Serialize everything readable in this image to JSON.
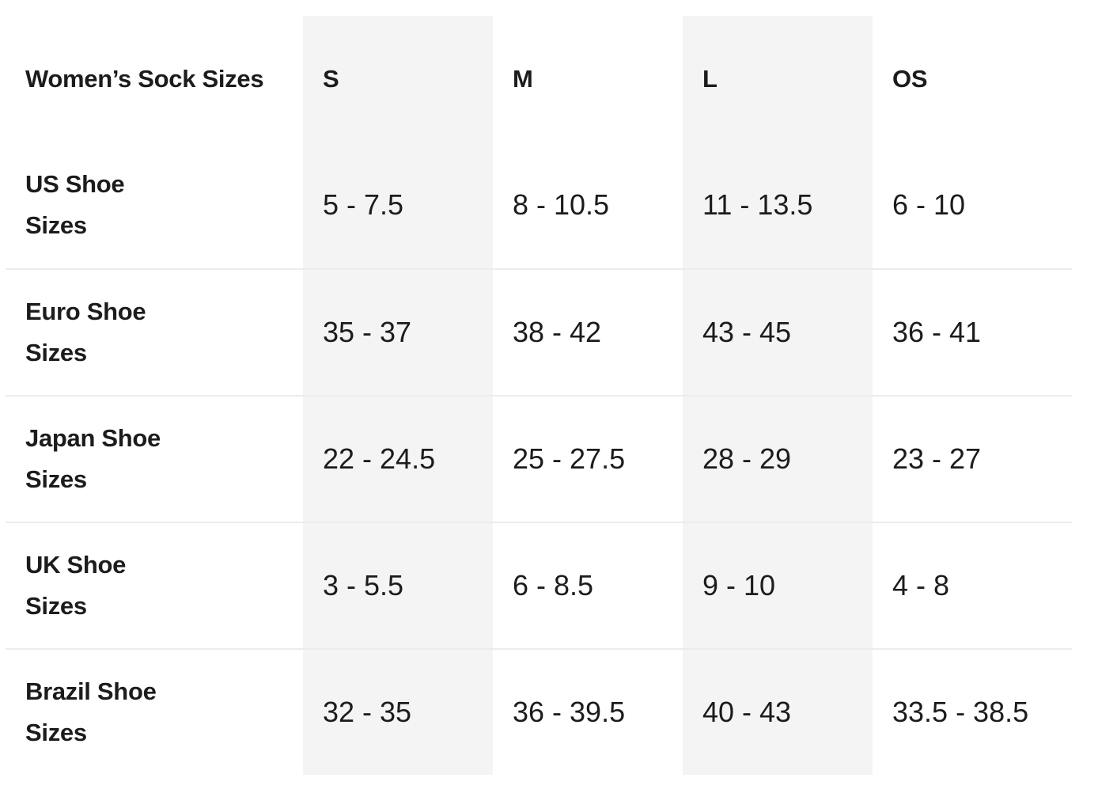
{
  "table": {
    "title": "Women’s Sock Sizes",
    "size_headers": [
      "S",
      "M",
      "L",
      "OS"
    ],
    "rows": [
      {
        "label": "US Shoe\nSizes",
        "values": [
          "5 - 7.5",
          "8 - 10.5",
          "11 - 13.5",
          "6 - 10"
        ]
      },
      {
        "label": "Euro Shoe\nSizes",
        "values": [
          "35 - 37",
          "38 - 42",
          "43 - 45",
          "36 - 41"
        ]
      },
      {
        "label": "Japan Shoe\nSizes",
        "values": [
          "22 - 24.5",
          "25 - 27.5",
          "28 - 29",
          "23 - 27"
        ]
      },
      {
        "label": "UK Shoe\nSizes",
        "values": [
          "3 - 5.5",
          "6 - 8.5",
          "9 - 10",
          "4 - 8"
        ]
      },
      {
        "label": "Brazil Shoe\nSizes",
        "values": [
          "32 - 35",
          "36 - 39.5",
          "40 - 43",
          "33.5 - 38.5"
        ]
      }
    ],
    "colors": {
      "shaded_column_bg": "#f4f4f4",
      "row_divider": "#ececec",
      "text": "#1c1c1c"
    }
  },
  "chart_data": {
    "type": "table",
    "title": "Women’s Sock Sizes",
    "columns": [
      "Women’s Sock Sizes",
      "S",
      "M",
      "L",
      "OS"
    ],
    "rows": [
      [
        "US Shoe Sizes",
        "5 - 7.5",
        "8 - 10.5",
        "11 - 13.5",
        "6 - 10"
      ],
      [
        "Euro Shoe Sizes",
        "35 - 37",
        "38 - 42",
        "43 - 45",
        "36 - 41"
      ],
      [
        "Japan Shoe Sizes",
        "22 - 24.5",
        "25 - 27.5",
        "28 - 29",
        "23 - 27"
      ],
      [
        "UK Shoe Sizes",
        "3 - 5.5",
        "6 - 8.5",
        "9 - 10",
        "4 - 8"
      ],
      [
        "Brazil Shoe Sizes",
        "32 - 35",
        "36 - 39.5",
        "40 - 43",
        "33.5 - 38.5"
      ]
    ],
    "layout": {
      "shaded_columns": [
        "S",
        "L"
      ],
      "grid": "horizontal dividers between data rows only",
      "header_position": "top row, bold"
    }
  }
}
